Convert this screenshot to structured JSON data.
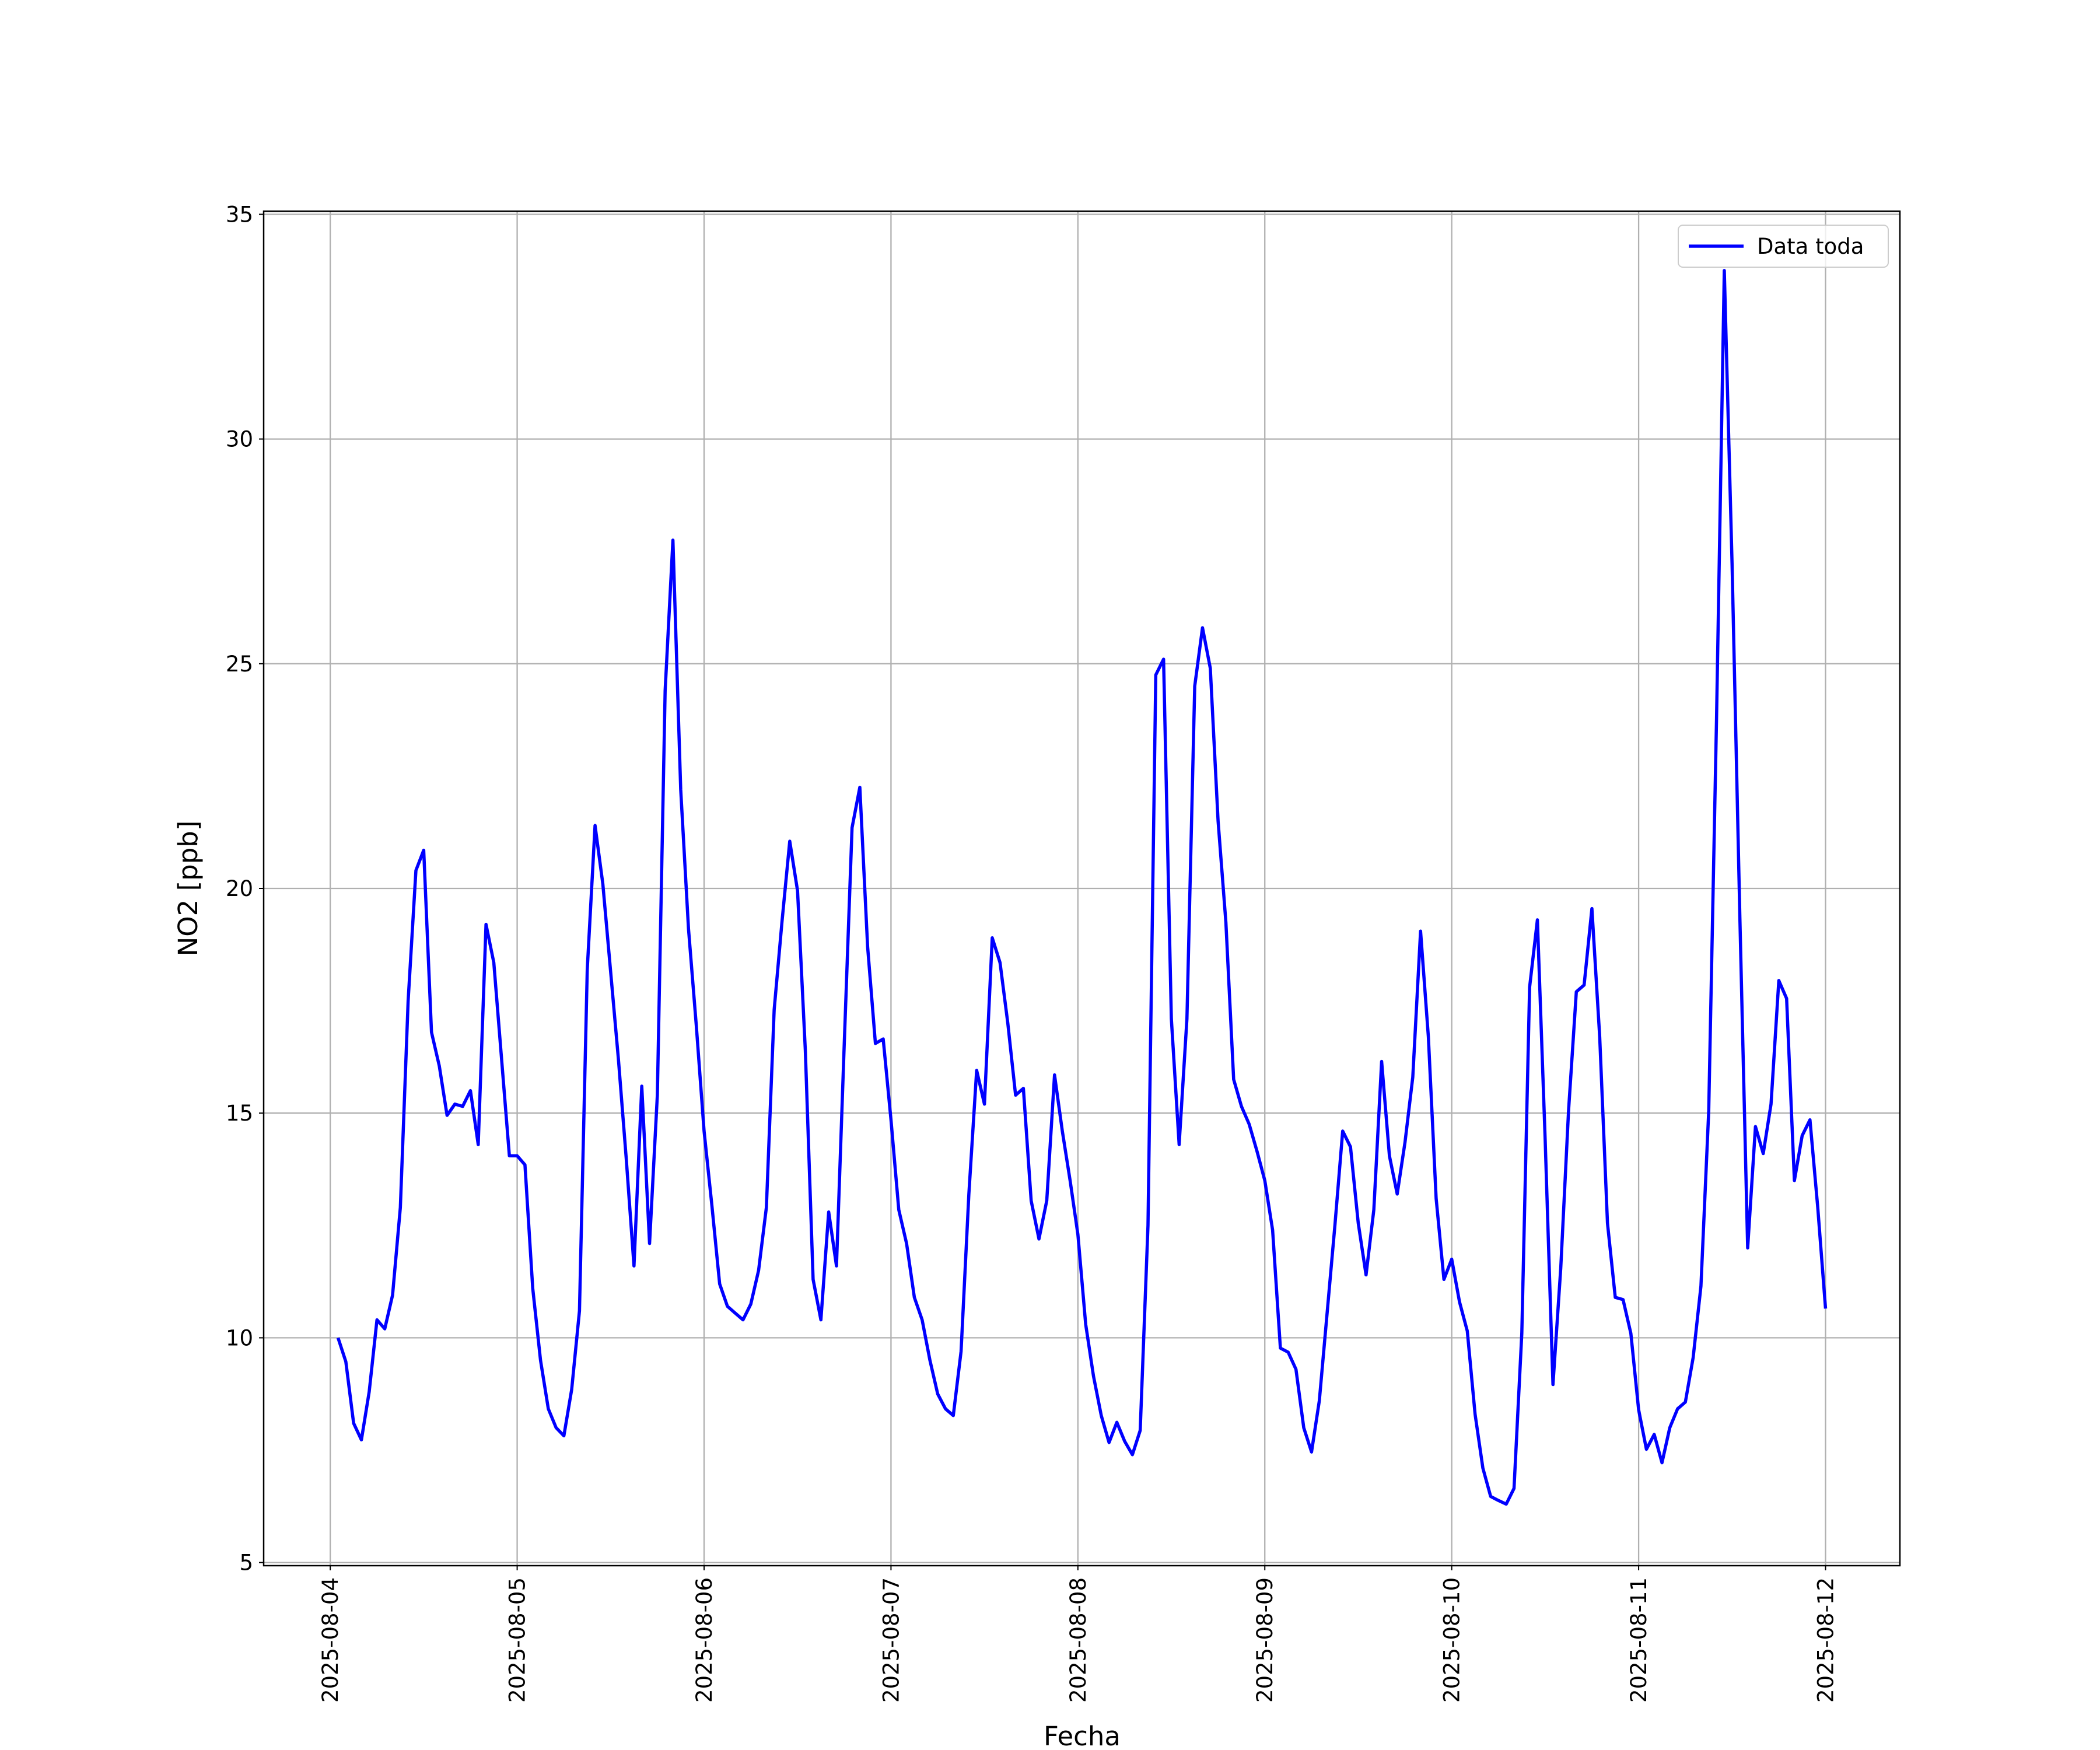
{
  "chart_data": {
    "type": "line",
    "x_label": "Fecha",
    "y_label": "NO2 [ppb]",
    "x": [
      1,
      2,
      3,
      4,
      5,
      6,
      7,
      8,
      9,
      10,
      11,
      12,
      13,
      14,
      15,
      16,
      17,
      18,
      19,
      20,
      21,
      22,
      23,
      24,
      25,
      26,
      27,
      28,
      29,
      30,
      31,
      32,
      33,
      34,
      35,
      36,
      37,
      38,
      39,
      40,
      41,
      42,
      43,
      44,
      45,
      46,
      47,
      48,
      49,
      50,
      51,
      52,
      53,
      54,
      55,
      56,
      57,
      58,
      59,
      60,
      61,
      62,
      63,
      64,
      65,
      66,
      67,
      68,
      69,
      70,
      71,
      72,
      73,
      74,
      75,
      76,
      77,
      78,
      79,
      80,
      81,
      82,
      83,
      84,
      85,
      86,
      87,
      88,
      89,
      90,
      91,
      92,
      93,
      94,
      95,
      96,
      97,
      98,
      99,
      100,
      101,
      102,
      103,
      104,
      105,
      106,
      107,
      108,
      109,
      110,
      111,
      112,
      113,
      114,
      115,
      116,
      117,
      118,
      119,
      120,
      121,
      122,
      123,
      124,
      125,
      126,
      127,
      128,
      129,
      130,
      131,
      132,
      133,
      134,
      135,
      136,
      137,
      138,
      139,
      140,
      141,
      142,
      143,
      144,
      145,
      146,
      147,
      148,
      149,
      150,
      151,
      152,
      153,
      154,
      155,
      156,
      157,
      158,
      159,
      160,
      161,
      162,
      163,
      164,
      165,
      166,
      167,
      168,
      169,
      170,
      171,
      172,
      173,
      174,
      175,
      176,
      177,
      178,
      179,
      180,
      181,
      182,
      183,
      184,
      185,
      186,
      187,
      188,
      189,
      190,
      191,
      192
    ],
    "series": [
      {
        "name": "Data toda",
        "color": "#0000ff",
        "values": [
          10.0,
          9.47,
          8.1,
          7.73,
          8.8,
          10.4,
          10.2,
          10.95,
          12.9,
          17.5,
          20.4,
          20.85,
          16.8,
          16.05,
          14.95,
          15.2,
          15.15,
          15.5,
          14.3,
          19.2,
          18.35,
          16.2,
          14.05,
          14.05,
          13.85,
          11.1,
          9.5,
          8.42,
          8.0,
          7.82,
          8.85,
          10.6,
          18.2,
          21.4,
          20.1,
          18.15,
          16.2,
          14.0,
          11.6,
          15.6,
          12.1,
          15.4,
          24.4,
          27.75,
          22.2,
          19.1,
          16.95,
          14.6,
          12.95,
          11.2,
          10.7,
          10.55,
          10.4,
          10.75,
          11.5,
          12.9,
          17.3,
          19.25,
          21.05,
          19.95,
          16.4,
          11.3,
          10.4,
          12.8,
          11.6,
          16.55,
          21.35,
          22.25,
          18.7,
          16.55,
          16.65,
          14.85,
          12.85,
          12.1,
          10.9,
          10.4,
          9.5,
          8.75,
          8.42,
          8.27,
          9.7,
          13.2,
          15.95,
          15.2,
          18.9,
          18.35,
          17.0,
          15.4,
          15.55,
          13.05,
          12.2,
          13.05,
          15.85,
          14.6,
          13.5,
          12.3,
          10.3,
          9.15,
          8.27,
          7.67,
          8.12,
          7.7,
          7.4,
          7.94,
          12.5,
          24.75,
          25.1,
          17.1,
          14.3,
          17.1,
          24.5,
          25.8,
          24.9,
          21.5,
          19.25,
          15.75,
          15.15,
          14.75,
          14.15,
          13.5,
          12.4,
          9.77,
          9.68,
          9.3,
          8.0,
          7.46,
          8.6,
          10.55,
          12.5,
          14.6,
          14.25,
          12.55,
          11.4,
          12.85,
          16.15,
          14.05,
          13.2,
          14.35,
          15.8,
          19.05,
          16.7,
          13.1,
          11.3,
          11.75,
          10.8,
          10.15,
          8.3,
          7.1,
          6.47,
          6.38,
          6.3,
          6.65,
          10.1,
          17.8,
          19.3,
          14.4,
          8.96,
          11.55,
          15.05,
          17.7,
          17.85,
          19.55,
          16.7,
          12.55,
          10.9,
          10.85,
          10.1,
          8.4,
          7.52,
          7.85,
          7.22,
          8.0,
          8.42,
          8.57,
          9.56,
          11.15,
          15.05,
          23.75,
          33.75,
          27.2,
          19.35,
          12.0,
          14.7,
          14.1,
          15.2,
          17.95,
          17.55,
          13.5,
          14.5,
          14.85,
          12.9,
          10.65
        ]
      }
    ],
    "xlim": [
      -8.55,
      201.55
    ],
    "xticks": [
      {
        "value": 0,
        "label": "2025-08-04"
      },
      {
        "value": 24,
        "label": "2025-08-05"
      },
      {
        "value": 48,
        "label": "2025-08-06"
      },
      {
        "value": 72,
        "label": "2025-08-07"
      },
      {
        "value": 96,
        "label": "2025-08-08"
      },
      {
        "value": 120,
        "label": "2025-08-09"
      },
      {
        "value": 144,
        "label": "2025-08-10"
      },
      {
        "value": 168,
        "label": "2025-08-11"
      },
      {
        "value": 192,
        "label": "2025-08-12"
      }
    ],
    "ylim": [
      4.93,
      35.07
    ],
    "yticks": [
      5,
      10,
      15,
      20,
      25,
      30,
      35
    ],
    "grid": true,
    "legend": "upper right"
  }
}
